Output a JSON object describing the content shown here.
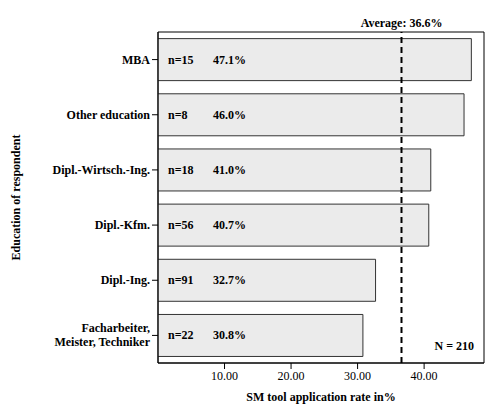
{
  "chart_data": {
    "type": "bar",
    "orientation": "horizontal",
    "x_label": "SM tool application rate in%",
    "y_label": "Education of respondent",
    "categories": [
      "MBA",
      "Other education",
      "Dipl.-Wirtsch.-Ing.",
      "Dipl.-Kfm.",
      "Dipl.-Ing.",
      "Facharbeiter, Meister, Techniker"
    ],
    "values": [
      47.1,
      46.0,
      41.0,
      40.7,
      32.7,
      30.8
    ],
    "value_labels": [
      "47.1%",
      "46.0%",
      "41.0%",
      "40.7%",
      "32.7%",
      "30.8%"
    ],
    "n_labels": [
      "n=15",
      "n=8",
      "n=18",
      "n=56",
      "n=91",
      "n=22"
    ],
    "data_labels": true,
    "color": "#ebebeb",
    "xlim": [
      0,
      49
    ],
    "xticks": [
      {
        "value": 10,
        "label": "10.00"
      },
      {
        "value": 20,
        "label": "20.00"
      },
      {
        "value": 30,
        "label": "30.00"
      },
      {
        "value": 40,
        "label": "40.00"
      }
    ],
    "grid": false,
    "reference_line": {
      "value": 36.6,
      "label": "Average: 36.6%"
    },
    "annotations": [
      "N = 210"
    ]
  }
}
